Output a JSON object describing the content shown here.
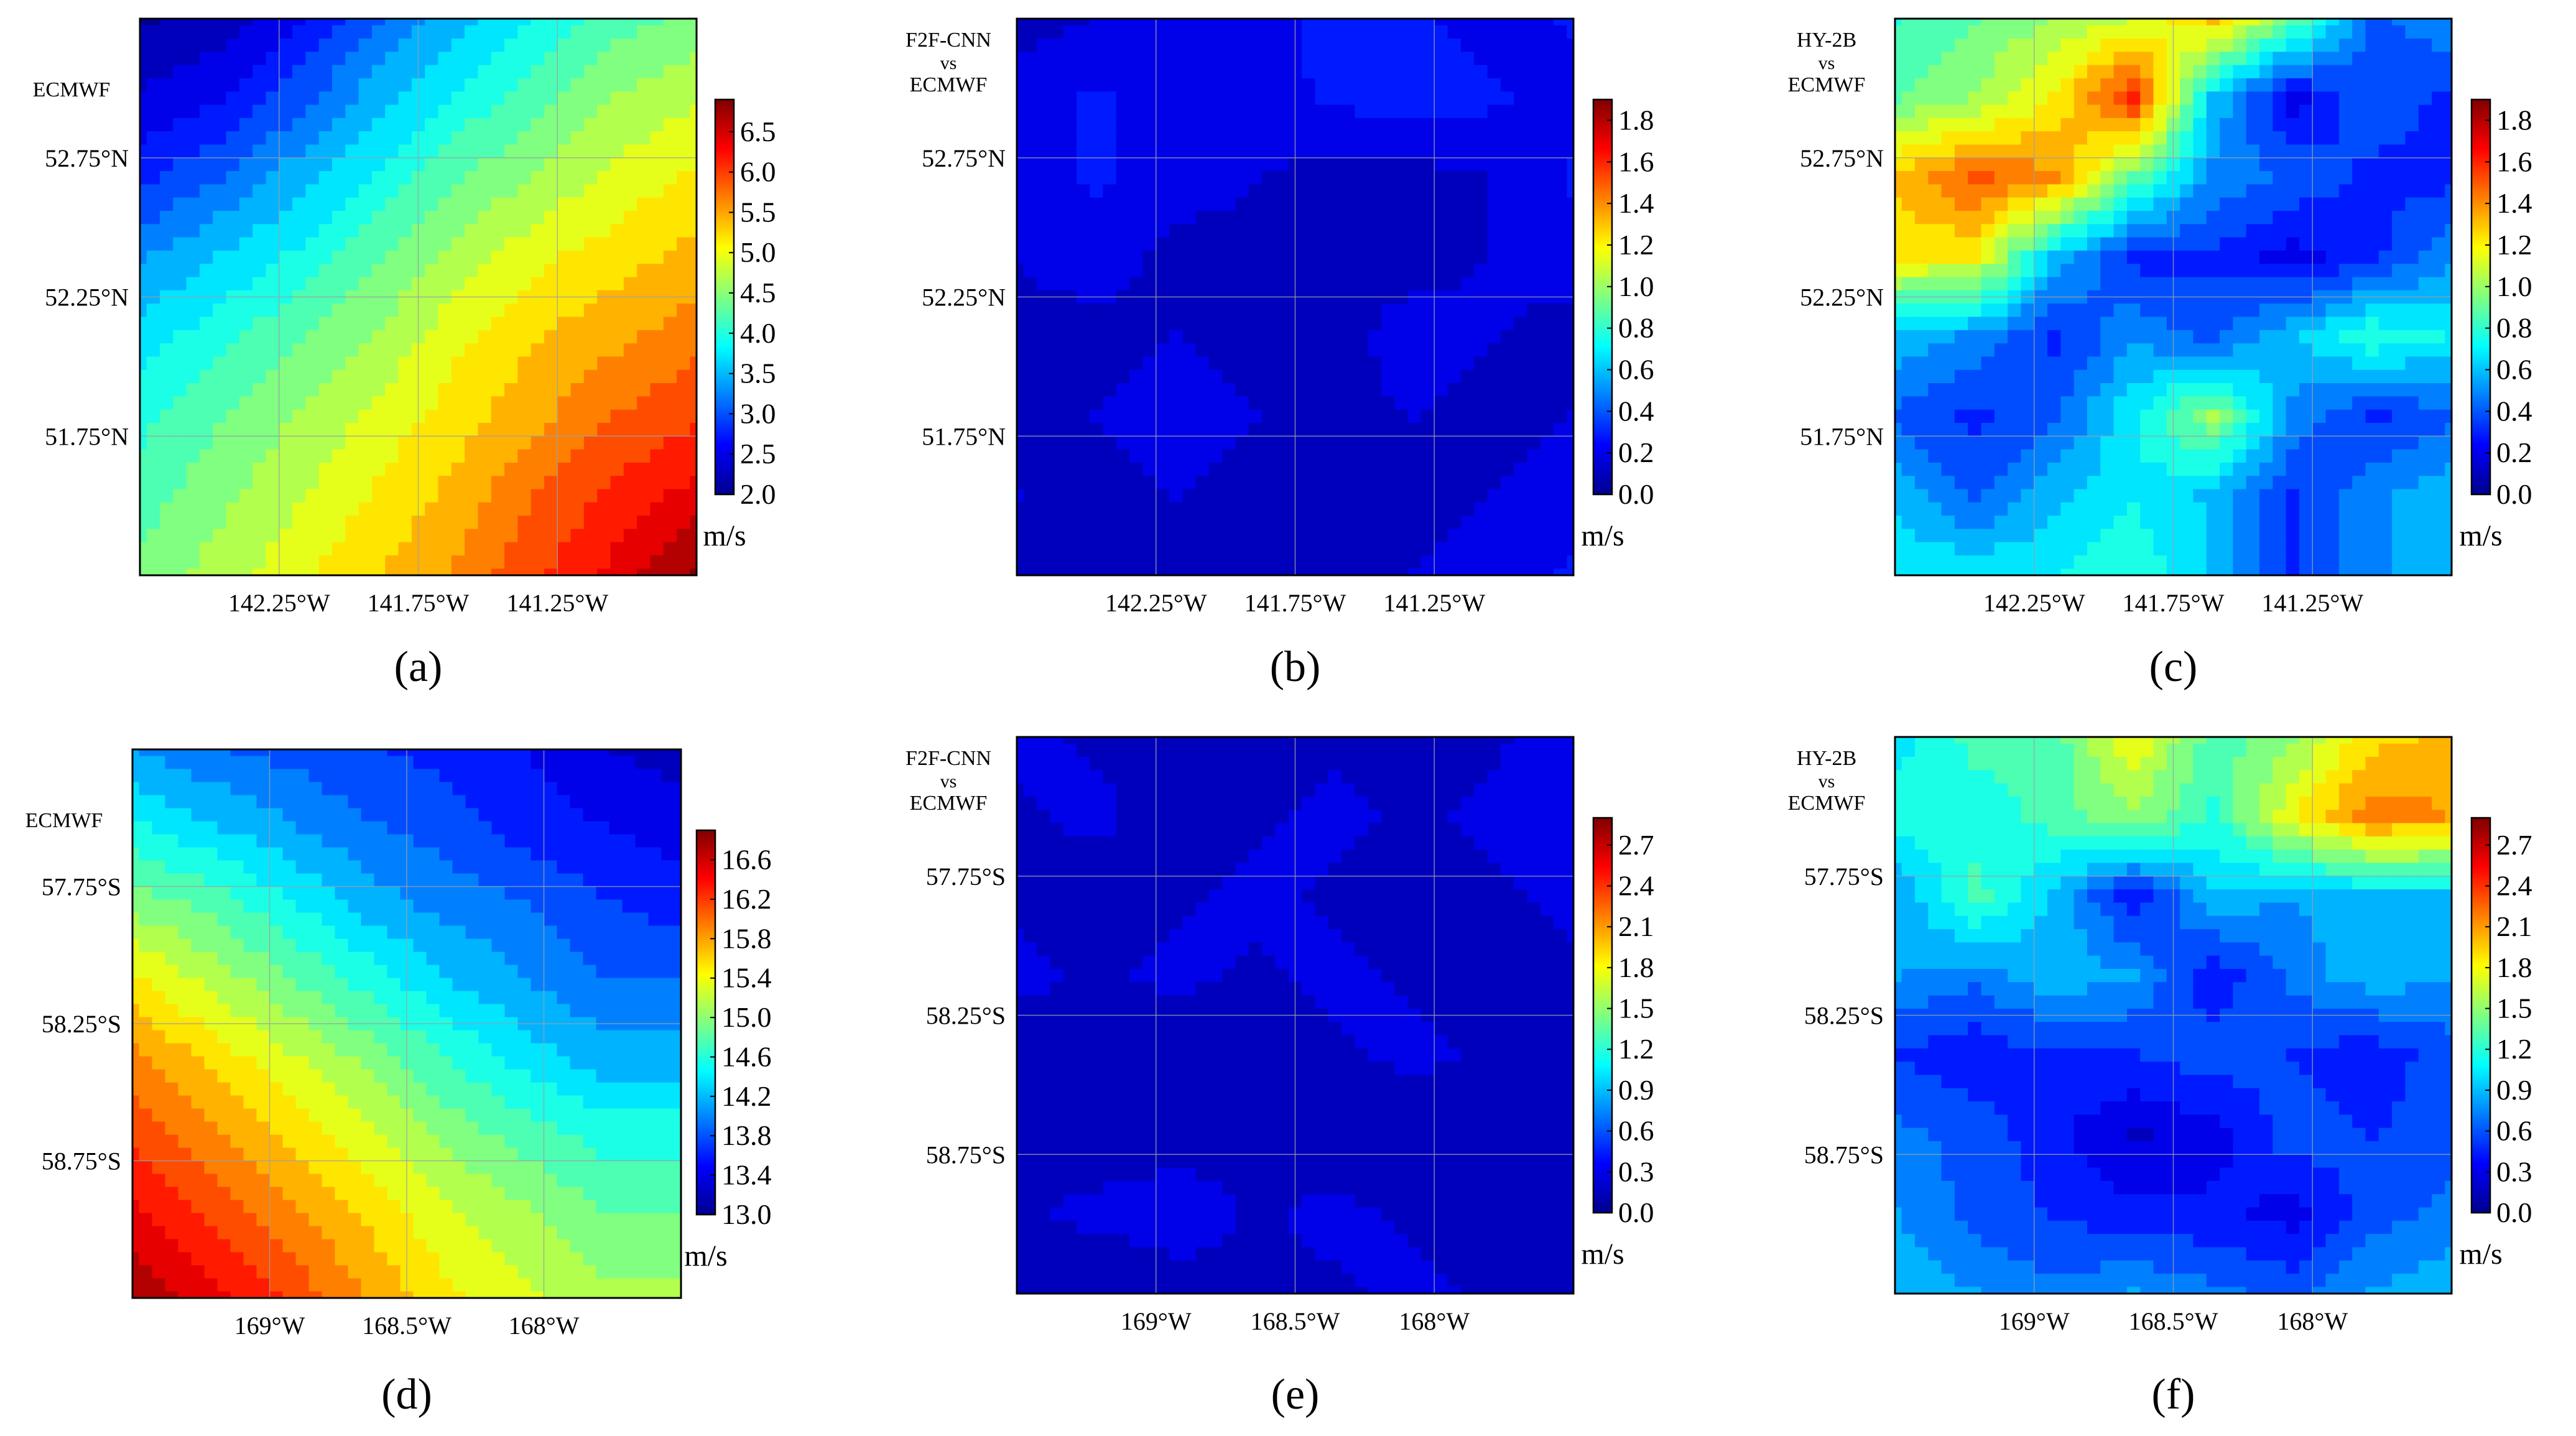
{
  "colors": {
    "jet": [
      "#00008f",
      "#0000ff",
      "#0080ff",
      "#00ffff",
      "#80ff80",
      "#ffff00",
      "#ff8000",
      "#ff0000",
      "#800000"
    ],
    "grid": "#9aa0a8",
    "frame": "#000000"
  },
  "chart_data": [
    {
      "panel": "a",
      "type": "heatmap",
      "label": "(a)",
      "title": "ECMWF",
      "title_lines": [
        "ECMWF"
      ],
      "unit": "m/s",
      "colorbar": {
        "min": 2.0,
        "max": 6.9,
        "ticks": [
          "2.0",
          "2.5",
          "3.0",
          "3.5",
          "4.0",
          "4.5",
          "5.0",
          "5.5",
          "6.0",
          "6.5"
        ]
      },
      "xlabel": "",
      "ylabel": "",
      "xlim": [
        -142.75,
        -140.75
      ],
      "ylim": [
        51.25,
        53.25
      ],
      "xticks": [
        -142.25,
        -141.75,
        -141.25
      ],
      "yticks": [
        52.75,
        52.25,
        51.75
      ],
      "xtick_labels": [
        "142.25°W",
        "141.75°W",
        "141.25°W"
      ],
      "ytick_labels": [
        "52.75°N",
        "52.25°N",
        "51.75°N"
      ],
      "values": [
        [
          2.1,
          2.2,
          2.6,
          3.1,
          3.5,
          3.9,
          4.2,
          4.4
        ],
        [
          2.4,
          2.6,
          3.0,
          3.5,
          3.9,
          4.2,
          4.6,
          4.8
        ],
        [
          2.8,
          3.1,
          3.5,
          3.9,
          4.3,
          4.6,
          4.9,
          5.1
        ],
        [
          3.3,
          3.6,
          3.9,
          4.3,
          4.7,
          5.0,
          5.2,
          5.4
        ],
        [
          3.7,
          4.0,
          4.3,
          4.6,
          5.0,
          5.3,
          5.5,
          5.7
        ],
        [
          4.0,
          4.3,
          4.6,
          4.9,
          5.2,
          5.5,
          5.8,
          6.0
        ],
        [
          4.2,
          4.5,
          4.8,
          5.1,
          5.4,
          5.8,
          6.1,
          6.4
        ],
        [
          4.4,
          4.7,
          5.0,
          5.3,
          5.6,
          6.0,
          6.4,
          6.8
        ]
      ]
    },
    {
      "panel": "b",
      "type": "heatmap",
      "label": "(b)",
      "title": "F2F-CNN vs ECMWF",
      "title_lines": [
        "F2F-CNN",
        "vs",
        "ECMWF"
      ],
      "unit": "m/s",
      "colorbar": {
        "min": 0.0,
        "max": 1.9,
        "ticks": [
          "0.0",
          "0.2",
          "0.4",
          "0.6",
          "0.8",
          "1.0",
          "1.2",
          "1.4",
          "1.6",
          "1.8"
        ]
      },
      "xlabel": "",
      "ylabel": "",
      "xlim": [
        -142.75,
        -140.75
      ],
      "ylim": [
        51.25,
        53.25
      ],
      "xticks": [
        -142.25,
        -141.75,
        -141.25
      ],
      "yticks": [
        52.75,
        52.25,
        51.75
      ],
      "xtick_labels": [
        "142.25°W",
        "141.75°W",
        "141.25°W"
      ],
      "ytick_labels": [
        "52.75°N",
        "52.25°N",
        "51.75°N"
      ],
      "values": [
        [
          0.1,
          0.15,
          0.2,
          0.15,
          0.3,
          0.25,
          0.2,
          0.25
        ],
        [
          0.2,
          0.25,
          0.2,
          0.2,
          0.25,
          0.3,
          0.25,
          0.2
        ],
        [
          0.2,
          0.25,
          0.2,
          0.15,
          0.1,
          0.1,
          0.15,
          0.25
        ],
        [
          0.15,
          0.2,
          0.1,
          0.1,
          0.1,
          0.1,
          0.15,
          0.2
        ],
        [
          0.1,
          0.1,
          0.15,
          0.1,
          0.1,
          0.2,
          0.15,
          0.1
        ],
        [
          0.1,
          0.15,
          0.2,
          0.15,
          0.1,
          0.15,
          0.1,
          0.15
        ],
        [
          0.15,
          0.1,
          0.15,
          0.1,
          0.1,
          0.1,
          0.15,
          0.2
        ],
        [
          0.1,
          0.1,
          0.1,
          0.1,
          0.1,
          0.15,
          0.2,
          0.25
        ]
      ]
    },
    {
      "panel": "c",
      "type": "heatmap",
      "label": "(c)",
      "title": "HY-2B vs ECMWF",
      "title_lines": [
        "HY-2B",
        "vs",
        "ECMWF"
      ],
      "unit": "m/s",
      "colorbar": {
        "min": 0.0,
        "max": 1.9,
        "ticks": [
          "0.0",
          "0.2",
          "0.4",
          "0.6",
          "0.8",
          "1.0",
          "1.2",
          "1.4",
          "1.6",
          "1.8"
        ]
      },
      "xlabel": "",
      "ylabel": "",
      "xlim": [
        -142.75,
        -140.75
      ],
      "ylim": [
        51.25,
        53.25
      ],
      "xticks": [
        -142.25,
        -141.75,
        -141.25
      ],
      "yticks": [
        52.75,
        52.25,
        51.75
      ],
      "xtick_labels": [
        "142.25°W",
        "141.75°W",
        "141.25°W"
      ],
      "ytick_labels": [
        "52.75°N",
        "52.25°N",
        "51.75°N"
      ],
      "values": [
        [
          0.8,
          0.9,
          1.0,
          1.1,
          1.3,
          0.9,
          0.4,
          0.5
        ],
        [
          0.9,
          1.0,
          1.2,
          1.6,
          0.6,
          0.2,
          0.4,
          0.3
        ],
        [
          1.3,
          1.5,
          1.4,
          0.9,
          0.5,
          0.4,
          0.3,
          0.3
        ],
        [
          1.2,
          1.2,
          0.6,
          0.3,
          0.3,
          0.2,
          0.3,
          0.5
        ],
        [
          0.6,
          0.5,
          0.3,
          0.5,
          0.4,
          0.6,
          0.8,
          0.7
        ],
        [
          0.4,
          0.3,
          0.4,
          0.7,
          1.0,
          0.5,
          0.3,
          0.4
        ],
        [
          0.6,
          0.4,
          0.6,
          0.7,
          0.6,
          0.3,
          0.5,
          0.6
        ],
        [
          0.7,
          0.7,
          0.7,
          0.8,
          0.6,
          0.3,
          0.5,
          0.6
        ]
      ]
    },
    {
      "panel": "d",
      "type": "heatmap",
      "label": "(d)",
      "title": "ECMWF",
      "title_lines": [
        "ECMWF"
      ],
      "unit": "m/s",
      "colorbar": {
        "min": 13.0,
        "max": 16.9,
        "ticks": [
          "13.0",
          "13.4",
          "13.8",
          "14.2",
          "14.6",
          "15.0",
          "15.4",
          "15.8",
          "16.2",
          "16.6"
        ]
      },
      "xlabel": "",
      "ylabel": "",
      "xlim": [
        -169.5,
        -167.5
      ],
      "ylim": [
        -59.25,
        -57.25
      ],
      "xticks": [
        -169.0,
        -168.5,
        -168.0
      ],
      "yticks": [
        -57.75,
        -58.25,
        -58.75
      ],
      "xtick_labels": [
        "169°W",
        "168.5°W",
        "168°W"
      ],
      "ytick_labels": [
        "57.75°S",
        "58.25°S",
        "58.75°S"
      ],
      "values": [
        [
          14.1,
          13.9,
          13.8,
          13.7,
          13.6,
          13.5,
          13.3,
          13.2
        ],
        [
          14.5,
          14.3,
          14.1,
          13.9,
          13.8,
          13.6,
          13.5,
          13.4
        ],
        [
          15.0,
          14.8,
          14.5,
          14.2,
          14.0,
          13.9,
          13.7,
          13.6
        ],
        [
          15.5,
          15.2,
          14.9,
          14.6,
          14.3,
          14.1,
          13.9,
          13.9
        ],
        [
          15.9,
          15.6,
          15.3,
          15.0,
          14.7,
          14.4,
          14.2,
          14.2
        ],
        [
          16.2,
          15.9,
          15.6,
          15.3,
          15.0,
          14.8,
          14.6,
          14.6
        ],
        [
          16.5,
          16.2,
          15.9,
          15.6,
          15.3,
          15.1,
          14.9,
          14.9
        ],
        [
          16.8,
          16.5,
          16.2,
          15.8,
          15.5,
          15.3,
          15.1,
          15.1
        ]
      ]
    },
    {
      "panel": "e",
      "type": "heatmap",
      "label": "(e)",
      "title": "F2F-CNN vs ECMWF",
      "title_lines": [
        "F2F-CNN",
        "vs",
        "ECMWF"
      ],
      "unit": "m/s",
      "colorbar": {
        "min": 0.0,
        "max": 2.9,
        "ticks": [
          "0.0",
          "0.3",
          "0.6",
          "0.9",
          "1.2",
          "1.5",
          "1.8",
          "2.1",
          "2.4",
          "2.7"
        ]
      },
      "xlabel": "",
      "ylabel": "",
      "xlim": [
        -169.5,
        -167.5
      ],
      "ylim": [
        -59.25,
        -57.25
      ],
      "xticks": [
        -169.0,
        -168.5,
        -168.0
      ],
      "yticks": [
        -57.75,
        -58.25,
        -58.75
      ],
      "xtick_labels": [
        "169°W",
        "168.5°W",
        "168°W"
      ],
      "ytick_labels": [
        "57.75°S",
        "58.25°S",
        "58.75°S"
      ],
      "values": [
        [
          0.25,
          0.2,
          0.15,
          0.1,
          0.2,
          0.15,
          0.2,
          0.3
        ],
        [
          0.2,
          0.25,
          0.15,
          0.2,
          0.25,
          0.2,
          0.25,
          0.3
        ],
        [
          0.2,
          0.15,
          0.2,
          0.25,
          0.2,
          0.15,
          0.2,
          0.25
        ],
        [
          0.25,
          0.2,
          0.25,
          0.2,
          0.25,
          0.2,
          0.15,
          0.2
        ],
        [
          0.15,
          0.15,
          0.1,
          0.15,
          0.2,
          0.25,
          0.2,
          0.2
        ],
        [
          0.2,
          0.15,
          0.15,
          0.2,
          0.15,
          0.1,
          0.15,
          0.2
        ],
        [
          0.2,
          0.25,
          0.3,
          0.2,
          0.25,
          0.2,
          0.15,
          0.2
        ],
        [
          0.15,
          0.1,
          0.15,
          0.2,
          0.2,
          0.25,
          0.2,
          0.15
        ]
      ]
    },
    {
      "panel": "f",
      "type": "heatmap",
      "label": "(f)",
      "title": "HY-2B vs ECMWF",
      "title_lines": [
        "HY-2B",
        "vs",
        "ECMWF"
      ],
      "unit": "m/s",
      "colorbar": {
        "min": 0.0,
        "max": 2.9,
        "ticks": [
          "0.0",
          "0.3",
          "0.6",
          "0.9",
          "1.2",
          "1.5",
          "1.8",
          "2.1",
          "2.4",
          "2.7"
        ]
      },
      "xlabel": "",
      "ylabel": "",
      "xlim": [
        -169.5,
        -167.5
      ],
      "ylim": [
        -59.25,
        -57.25
      ],
      "xticks": [
        -169.0,
        -168.5,
        -168.0
      ],
      "yticks": [
        -57.75,
        -58.25,
        -58.75
      ],
      "xtick_labels": [
        "169°W",
        "168.5°W",
        "168°W"
      ],
      "ytick_labels": [
        "57.75°S",
        "58.25°S",
        "58.75°S"
      ],
      "values": [
        [
          1.0,
          1.3,
          1.3,
          1.8,
          1.3,
          1.5,
          1.9,
          2.0
        ],
        [
          1.2,
          1.1,
          1.3,
          1.5,
          1.2,
          1.8,
          2.2,
          2.1
        ],
        [
          0.8,
          1.3,
          0.9,
          0.4,
          0.9,
          0.8,
          0.9,
          0.9
        ],
        [
          0.8,
          0.7,
          0.9,
          0.8,
          0.4,
          0.7,
          0.9,
          0.8
        ],
        [
          0.5,
          0.4,
          0.5,
          0.5,
          0.6,
          0.5,
          0.4,
          0.6
        ],
        [
          0.7,
          0.6,
          0.4,
          0.2,
          0.3,
          0.6,
          0.5,
          0.6
        ],
        [
          0.8,
          0.6,
          0.5,
          0.4,
          0.4,
          0.3,
          0.6,
          0.7
        ],
        [
          0.9,
          0.8,
          0.7,
          0.8,
          0.7,
          0.6,
          0.8,
          0.9
        ]
      ]
    }
  ]
}
